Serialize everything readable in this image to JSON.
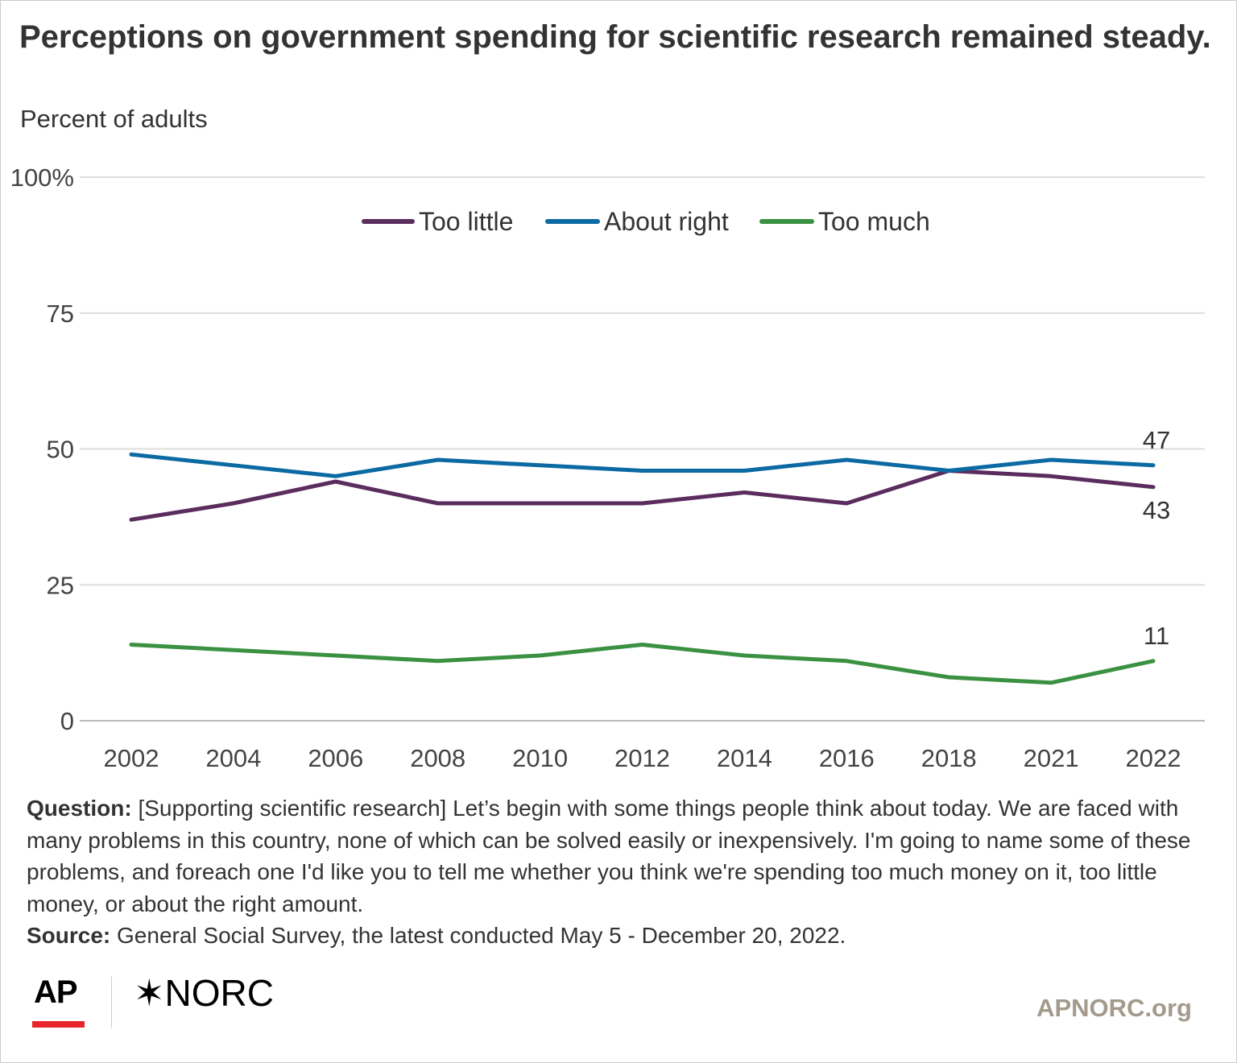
{
  "title": "Perceptions on government spending for scientific research remained steady.",
  "subtitle": "Percent of adults",
  "chart_data": {
    "type": "line",
    "categories": [
      "2002",
      "2004",
      "2006",
      "2008",
      "2010",
      "2012",
      "2014",
      "2016",
      "2018",
      "2021",
      "2022"
    ],
    "series": [
      {
        "name": "Too little",
        "color": "#5b2c5e",
        "values": [
          37,
          40,
          44,
          40,
          40,
          40,
          42,
          40,
          46,
          45,
          43
        ]
      },
      {
        "name": "About right",
        "color": "#0c6aa3",
        "values": [
          49,
          47,
          45,
          48,
          47,
          46,
          46,
          48,
          46,
          48,
          47
        ]
      },
      {
        "name": "Too much",
        "color": "#3b9142",
        "values": [
          14,
          13,
          12,
          11,
          12,
          14,
          12,
          11,
          8,
          7,
          11
        ]
      }
    ],
    "end_labels": [
      "43",
      "47",
      "11"
    ],
    "y_ticks": [
      "0",
      "25",
      "50",
      "75",
      "100%"
    ],
    "ylim": [
      0,
      100
    ],
    "xlabel": "",
    "ylabel": "",
    "legend_position": "top-center",
    "grid": true
  },
  "notes": {
    "question_label": "Question:",
    "question_text": " [Supporting scientific research] Let’s begin with some things people think about today. We are faced with many problems in this country, none of which can be solved easily or inexpensively. I'm going to name some of these problems, and foreach one I'd like you to tell me whether you think we're spending too much money on it, too little money, or about the right amount.",
    "source_label": "Source:",
    "source_text": " General Social Survey, the latest conducted May 5 - December 20, 2022."
  },
  "footer": {
    "ap_logo": "AP",
    "norc_star": "✶",
    "norc_logo": "NORC",
    "site": "APNORC.org"
  }
}
